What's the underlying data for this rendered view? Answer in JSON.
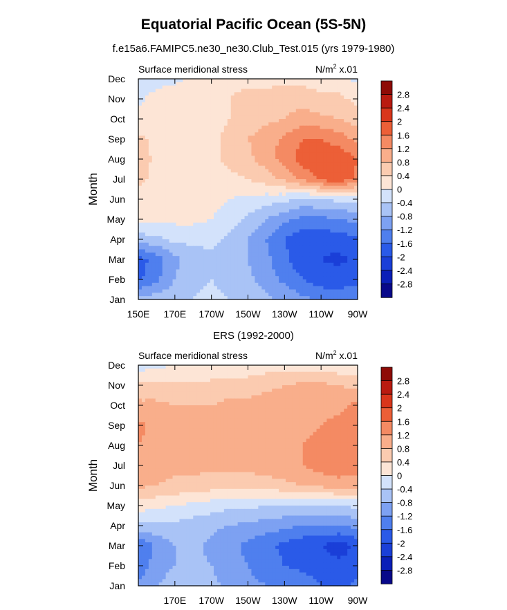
{
  "figure": {
    "title": "Equatorial Pacific Ocean (5S-5N)",
    "subtitle": "f.e15a6.FAMIPC5.ne30_ne30.Club_Test.015 (yrs 1979-1980)",
    "second_title": "ERS (1992-2000)"
  },
  "colors": {
    "levels": [
      -2.8,
      -2.4,
      -2.0,
      -1.6,
      -1.2,
      -0.8,
      -0.4,
      0,
      0.4,
      0.8,
      1.2,
      1.6,
      2.0,
      2.4,
      2.8
    ],
    "fills": [
      "#08088a",
      "#0a1fb8",
      "#1a3fd8",
      "#2a5ae8",
      "#4f7fee",
      "#7da1f2",
      "#a9c3f6",
      "#d3e2fb",
      "#fde5d6",
      "#fbcbb0",
      "#f9ae8b",
      "#f48a63",
      "#ec5f37",
      "#d9361b",
      "#b91b10",
      "#8e0b06"
    ]
  },
  "chart_data": [
    {
      "type": "heatmap",
      "name": "model",
      "left_label": "Surface meridional stress",
      "right_label_base": "N/m",
      "right_label_exp": "2",
      "right_label_tail": " x.01",
      "ylabel": "Month",
      "months": [
        "Jan",
        "Feb",
        "Mar",
        "Apr",
        "May",
        "Jun",
        "Jul",
        "Aug",
        "Sep",
        "Oct",
        "Nov",
        "Dec"
      ],
      "xticks": [
        "150E",
        "170E",
        "170W",
        "150W",
        "130W",
        "110W",
        "90W"
      ],
      "xlim_deg_east": [
        150,
        270
      ],
      "colorbar_labels": [
        "2.8",
        "2.4",
        "2",
        "1.6",
        "1.2",
        "0.8",
        "0.4",
        "0",
        "-0.4",
        "-0.8",
        "-1.2",
        "-1.6",
        "-2",
        "-2.4",
        "-2.8"
      ],
      "lon": [
        150,
        160,
        170,
        180,
        190,
        200,
        210,
        220,
        230,
        240,
        250,
        260,
        270
      ],
      "values": [
        [
          -0.6,
          -0.6,
          -0.5,
          -0.4,
          -0.3,
          -0.4,
          -0.5,
          -0.7,
          -0.9,
          -1.1,
          -1.3,
          -1.4,
          -1.3
        ],
        [
          -1.7,
          -1.3,
          -0.8,
          -0.5,
          -0.4,
          -0.6,
          -0.7,
          -1.0,
          -1.3,
          -1.6,
          -1.8,
          -1.8,
          -1.7
        ],
        [
          -1.8,
          -1.4,
          -0.9,
          -0.6,
          -0.5,
          -0.6,
          -0.8,
          -1.1,
          -1.5,
          -1.9,
          -2.0,
          -2.1,
          -1.9
        ],
        [
          -0.6,
          -0.5,
          -0.3,
          -0.3,
          -0.3,
          -0.5,
          -0.8,
          -1.2,
          -1.6,
          -1.9,
          -1.9,
          -1.8,
          -1.7
        ],
        [
          0.1,
          0.1,
          0.1,
          0.1,
          0.0,
          -0.2,
          -0.5,
          -0.8,
          -1.1,
          -1.3,
          -1.3,
          -1.2,
          -1.1
        ],
        [
          0.2,
          0.2,
          0.2,
          0.2,
          0.1,
          0.0,
          -0.1,
          -0.2,
          -0.3,
          -0.5,
          -0.4,
          -0.3,
          -0.3
        ],
        [
          0.5,
          0.3,
          0.2,
          0.2,
          0.2,
          0.3,
          0.4,
          0.6,
          0.9,
          1.3,
          1.7,
          1.9,
          1.5
        ],
        [
          0.6,
          0.3,
          0.2,
          0.2,
          0.3,
          0.5,
          0.7,
          1.0,
          1.4,
          1.8,
          2.0,
          1.9,
          1.6
        ],
        [
          0.5,
          0.3,
          0.2,
          0.2,
          0.3,
          0.5,
          0.8,
          1.0,
          1.3,
          1.6,
          1.6,
          1.4,
          1.1
        ],
        [
          0.1,
          0.2,
          0.2,
          0.3,
          0.3,
          0.4,
          0.6,
          0.7,
          0.8,
          1.0,
          0.9,
          0.8,
          0.6
        ],
        [
          -0.1,
          0.2,
          0.3,
          0.3,
          0.4,
          0.4,
          0.5,
          0.5,
          0.6,
          0.6,
          0.5,
          0.5,
          0.3
        ],
        [
          -0.3,
          -0.2,
          -0.1,
          0.1,
          0.2,
          0.3,
          0.3,
          0.3,
          0.3,
          0.3,
          0.2,
          0.1,
          -0.1
        ]
      ]
    },
    {
      "type": "heatmap",
      "name": "ers",
      "left_label": "Surface meridional stress",
      "right_label_base": "N/m",
      "right_label_exp": "2",
      "right_label_tail": " x.01",
      "ylabel": "Month",
      "months": [
        "Jan",
        "Feb",
        "Mar",
        "Apr",
        "May",
        "Jun",
        "Jul",
        "Aug",
        "Sep",
        "Oct",
        "Nov",
        "Dec"
      ],
      "xticks": [
        "",
        "170E",
        "170W",
        "150W",
        "130W",
        "110W",
        "90W"
      ],
      "xlim_deg_east": [
        150,
        270
      ],
      "colorbar_labels": [
        "2.8",
        "2.4",
        "2",
        "1.6",
        "1.2",
        "0.8",
        "0.4",
        "0",
        "-0.4",
        "-0.8",
        "-1.2",
        "-1.6",
        "-2",
        "-2.4",
        "-2.8"
      ],
      "lon": [
        150,
        160,
        170,
        180,
        190,
        200,
        210,
        220,
        230,
        240,
        250,
        260,
        270
      ],
      "values": [
        [
          -1.1,
          -0.8,
          -0.6,
          -0.6,
          -0.7,
          -0.9,
          -1.1,
          -1.2,
          -1.3,
          -1.4,
          -1.6,
          -1.7,
          -1.5
        ],
        [
          -1.5,
          -1.0,
          -0.8,
          -0.7,
          -0.8,
          -1.0,
          -1.2,
          -1.4,
          -1.6,
          -1.7,
          -1.8,
          -1.9,
          -1.8
        ],
        [
          -1.6,
          -1.1,
          -0.8,
          -0.7,
          -0.9,
          -1.1,
          -1.3,
          -1.5,
          -1.7,
          -1.9,
          -2.0,
          -2.2,
          -1.9
        ],
        [
          -0.5,
          -0.5,
          -0.5,
          -0.6,
          -0.7,
          -0.8,
          -0.9,
          -1.0,
          -1.1,
          -1.2,
          -1.2,
          -1.2,
          -1.1
        ],
        [
          0.2,
          0.1,
          0.0,
          -0.1,
          -0.2,
          -0.3,
          -0.3,
          -0.4,
          -0.4,
          -0.4,
          -0.4,
          -0.4,
          -0.3
        ],
        [
          0.9,
          0.8,
          0.7,
          0.7,
          0.6,
          0.6,
          0.6,
          0.6,
          0.7,
          0.8,
          0.9,
          1.0,
          0.9
        ],
        [
          1.1,
          1.0,
          0.9,
          0.9,
          0.9,
          0.9,
          0.9,
          1.0,
          1.1,
          1.2,
          1.4,
          1.5,
          1.5
        ],
        [
          1.2,
          1.0,
          1.0,
          0.9,
          0.9,
          1.0,
          1.0,
          1.0,
          1.1,
          1.2,
          1.3,
          1.4,
          1.5
        ],
        [
          1.3,
          1.1,
          1.0,
          0.9,
          0.9,
          1.0,
          1.0,
          1.0,
          1.1,
          1.1,
          1.2,
          1.3,
          1.5
        ],
        [
          0.9,
          0.9,
          0.8,
          0.8,
          0.8,
          0.9,
          0.9,
          1.0,
          1.0,
          1.0,
          1.1,
          1.1,
          1.3
        ],
        [
          0.5,
          0.5,
          0.5,
          0.5,
          0.5,
          0.6,
          0.6,
          0.7,
          0.8,
          0.9,
          0.9,
          0.8,
          0.7
        ],
        [
          -0.2,
          -0.1,
          0.0,
          0.0,
          0.1,
          0.1,
          0.1,
          0.2,
          0.2,
          0.2,
          0.1,
          0.1,
          0.0
        ]
      ]
    }
  ]
}
